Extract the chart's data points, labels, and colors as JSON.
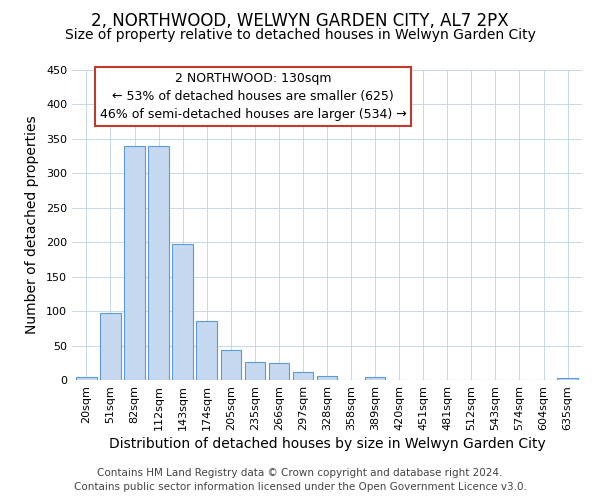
{
  "title": "2, NORTHWOOD, WELWYN GARDEN CITY, AL7 2PX",
  "subtitle": "Size of property relative to detached houses in Welwyn Garden City",
  "xlabel": "Distribution of detached houses by size in Welwyn Garden City",
  "ylabel": "Number of detached properties",
  "bar_labels": [
    "20sqm",
    "51sqm",
    "82sqm",
    "112sqm",
    "143sqm",
    "174sqm",
    "205sqm",
    "235sqm",
    "266sqm",
    "297sqm",
    "328sqm",
    "358sqm",
    "389sqm",
    "420sqm",
    "451sqm",
    "481sqm",
    "512sqm",
    "543sqm",
    "574sqm",
    "604sqm",
    "635sqm"
  ],
  "bar_values": [
    5,
    97,
    340,
    340,
    197,
    85,
    43,
    26,
    25,
    11,
    6,
    0,
    4,
    0,
    0,
    0,
    0,
    0,
    0,
    0,
    3
  ],
  "bar_color": "#c6d9f0",
  "bar_edge_color": "#5b9bd5",
  "annotation_line1": "2 NORTHWOOD: 130sqm",
  "annotation_line2": "← 53% of detached houses are smaller (625)",
  "annotation_line3": "46% of semi-detached houses are larger (534) →",
  "annotation_box_edge_color": "#c0392b",
  "annotation_box_facecolor": "#ffffff",
  "ylim": [
    0,
    450
  ],
  "yticks": [
    0,
    50,
    100,
    150,
    200,
    250,
    300,
    350,
    400,
    450
  ],
  "footnote": "Contains HM Land Registry data © Crown copyright and database right 2024.\nContains public sector information licensed under the Open Government Licence v3.0.",
  "background_color": "#ffffff",
  "grid_color": "#c8d8e8",
  "title_fontsize": 12,
  "subtitle_fontsize": 10,
  "axis_label_fontsize": 10,
  "tick_fontsize": 8,
  "annotation_fontsize": 9,
  "footnote_fontsize": 7.5
}
